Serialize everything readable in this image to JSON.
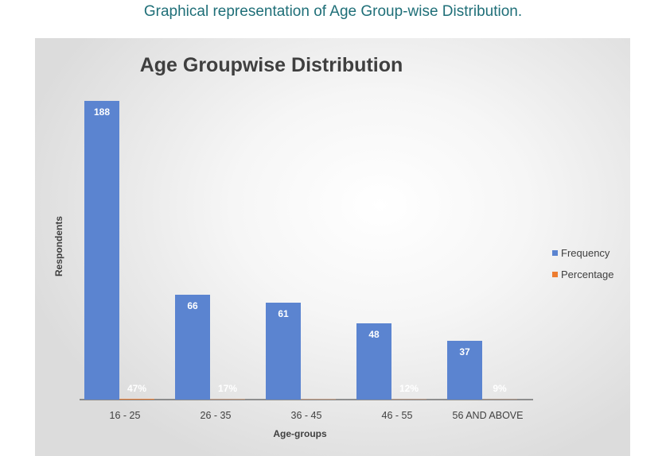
{
  "caption": "Graphical representation of Age Group-wise Distribution.",
  "chart_data": {
    "type": "bar",
    "title": "Age Groupwise Distribution",
    "xlabel": "Age-groups",
    "ylabel": "Respondents",
    "categories": [
      "16 - 25",
      "26 - 35",
      "36 - 45",
      "46 - 55",
      "56 AND ABOVE"
    ],
    "series": [
      {
        "name": "Frequency",
        "values": [
          188,
          66,
          61,
          48,
          37
        ],
        "labels": [
          "188",
          "66",
          "61",
          "48",
          "37"
        ],
        "color": "#5b84d0"
      },
      {
        "name": "Percentage",
        "values": [
          0.47,
          0.17,
          0.16,
          0.12,
          0.09
        ],
        "labels": [
          "47%",
          "17%",
          "",
          "12%",
          "9%"
        ],
        "color": "#ed7d31"
      }
    ],
    "ylim": [
      0,
      200
    ],
    "grid": false,
    "legend": "right",
    "label_color": "#ffffff"
  }
}
